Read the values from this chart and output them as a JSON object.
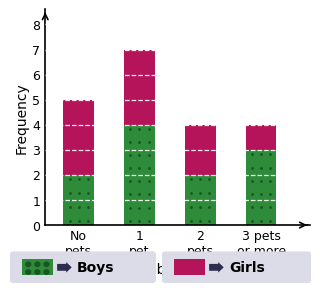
{
  "categories": [
    "No\npets",
    "1\npet",
    "2\npets",
    "3 pets\nor more"
  ],
  "boys": [
    2,
    4,
    2,
    3
  ],
  "girls": [
    3,
    3,
    2,
    1
  ],
  "boys_color": "#2e8b3a",
  "girls_color": "#b5145a",
  "boys_dot_color": "#1a5522",
  "title": "",
  "xlabel": "Number of pets",
  "ylabel": "Frequency",
  "ylim": [
    0,
    8.6
  ],
  "yticks": [
    0,
    1,
    2,
    3,
    4,
    5,
    6,
    7,
    8
  ],
  "bar_width": 0.5,
  "background_color": "#ffffff",
  "legend_bg": "#dcdce8",
  "legend_arrow_color": "#2d2d4e",
  "xlabel_fontsize": 10,
  "ylabel_fontsize": 10,
  "tick_fontsize": 9,
  "legend_fontsize": 10
}
